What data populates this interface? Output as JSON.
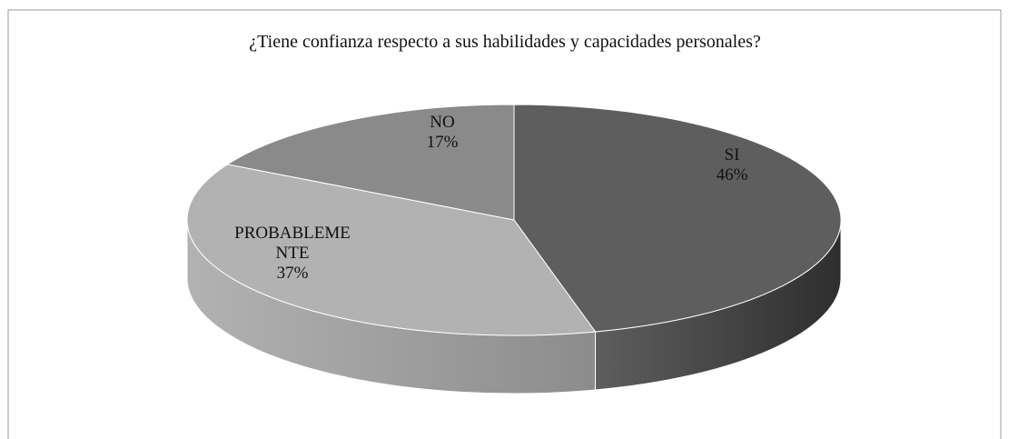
{
  "chart_data": {
    "type": "pie3d",
    "title": "¿Tiene confianza respecto a sus habilidades y capacidades personales?",
    "categories": [
      "SI",
      "PROBABLEMENTE",
      "NO"
    ],
    "values": [
      46,
      37,
      17
    ],
    "value_labels": [
      "46%",
      "37%",
      "17%"
    ],
    "colors": [
      "#5e5e5e",
      "#b2b2b2",
      "#8a8a8a"
    ],
    "side_colors": [
      "#2e2e2e",
      "#8c8c8c",
      "#6a6a6a"
    ]
  }
}
